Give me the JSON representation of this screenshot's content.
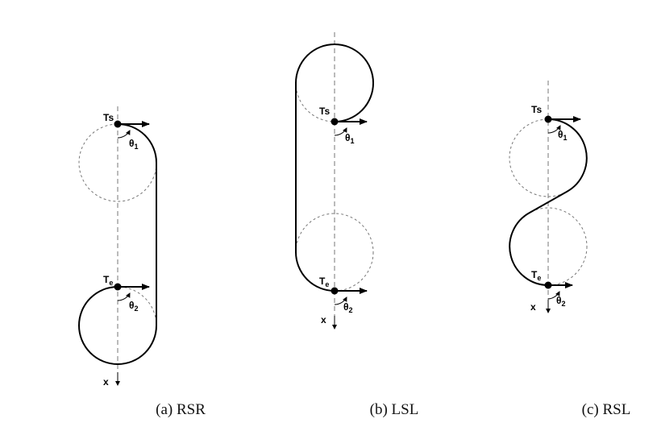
{
  "panels": [
    {
      "id": "a",
      "caption": "(a) RSR",
      "start_label": "Ts",
      "end_label_main": "T",
      "end_label_sub": "e",
      "angle1_main": "θ",
      "angle1_sub": "1",
      "angle2_main": "θ",
      "angle2_sub": "2",
      "axis_label": "x"
    },
    {
      "id": "b",
      "caption": "(b) LSL",
      "start_label": "Ts",
      "end_label_main": "T",
      "end_label_sub": "e",
      "angle1_main": "θ",
      "angle1_sub": "1",
      "angle2_main": "θ",
      "angle2_sub": "2",
      "axis_label": "x"
    },
    {
      "id": "c",
      "caption": "(c) RSL",
      "start_label": "Ts",
      "end_label_main": "T",
      "end_label_sub": "e",
      "angle1_main": "θ",
      "angle1_sub": "1",
      "angle2_main": "θ",
      "angle2_sub": "2",
      "axis_label": "x"
    }
  ]
}
